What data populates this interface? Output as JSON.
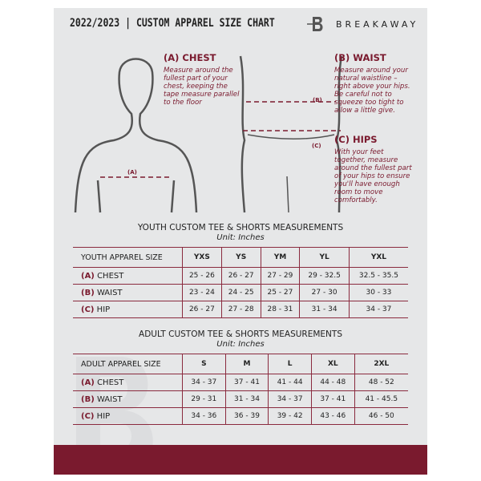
{
  "header": {
    "title": "2022/2023  |  CUSTOM APPAREL SIZE CHART",
    "brand": "BREAKAWAY",
    "logo_letter": "B"
  },
  "guide": {
    "chest": {
      "heading": "(A) CHEST",
      "text": "Measure around the fullest part of your chest, keeping the tape measure parallel to the floor",
      "marker": "(A)"
    },
    "waist": {
      "heading": "(B) WAIST",
      "text": "Measure around your natural waistline – right above your hips. Be careful not to squeeze too tight to allow a little give.",
      "marker": "(B)"
    },
    "hips": {
      "heading": "(C) HIPS",
      "text": "With your feet together, measure around the fullest part of your hips to ensure you'll have enough room to move comfortably.",
      "marker": "(C)"
    }
  },
  "youth": {
    "title": "YOUTH CUSTOM TEE & SHORTS MEASUREMENTS",
    "unit": "Unit: Inches",
    "header": "YOUTH APPAREL SIZE",
    "sizes": [
      "YXS",
      "YS",
      "YM",
      "YL",
      "YXL"
    ],
    "rows": [
      {
        "letter": "(A)",
        "label": "CHEST",
        "values": [
          "25 - 26",
          "26 - 27",
          "27 - 29",
          "29 - 32.5",
          "32.5 - 35.5"
        ]
      },
      {
        "letter": "(B)",
        "label": "WAIST",
        "values": [
          "23 - 24",
          "24 - 25",
          "25 - 27",
          "27 - 30",
          "30 - 33"
        ]
      },
      {
        "letter": "(C)",
        "label": "HIP",
        "values": [
          "26 - 27",
          "27 - 28",
          "28 - 31",
          "31 - 34",
          "34 - 37"
        ]
      }
    ]
  },
  "adult": {
    "title": "ADULT CUSTOM TEE & SHORTS MEASUREMENTS",
    "unit": "Unit: Inches",
    "header": "ADULT APPAREL SIZE",
    "sizes": [
      "S",
      "M",
      "L",
      "XL",
      "2XL"
    ],
    "rows": [
      {
        "letter": "(A)",
        "label": "CHEST",
        "values": [
          "34 - 37",
          "37 - 41",
          "41 - 44",
          "44 - 48",
          "48 - 52"
        ]
      },
      {
        "letter": "(B)",
        "label": "WAIST",
        "values": [
          "29 - 31",
          "31 - 34",
          "34 - 37",
          "37 - 41",
          "41 - 45.5"
        ]
      },
      {
        "letter": "(C)",
        "label": "HIP",
        "values": [
          "34 - 36",
          "36 - 39",
          "39 - 42",
          "43 - 46",
          "46 - 50"
        ]
      }
    ]
  },
  "colors": {
    "accent": "#7a1a2e",
    "panel": "#e6e7e8"
  }
}
